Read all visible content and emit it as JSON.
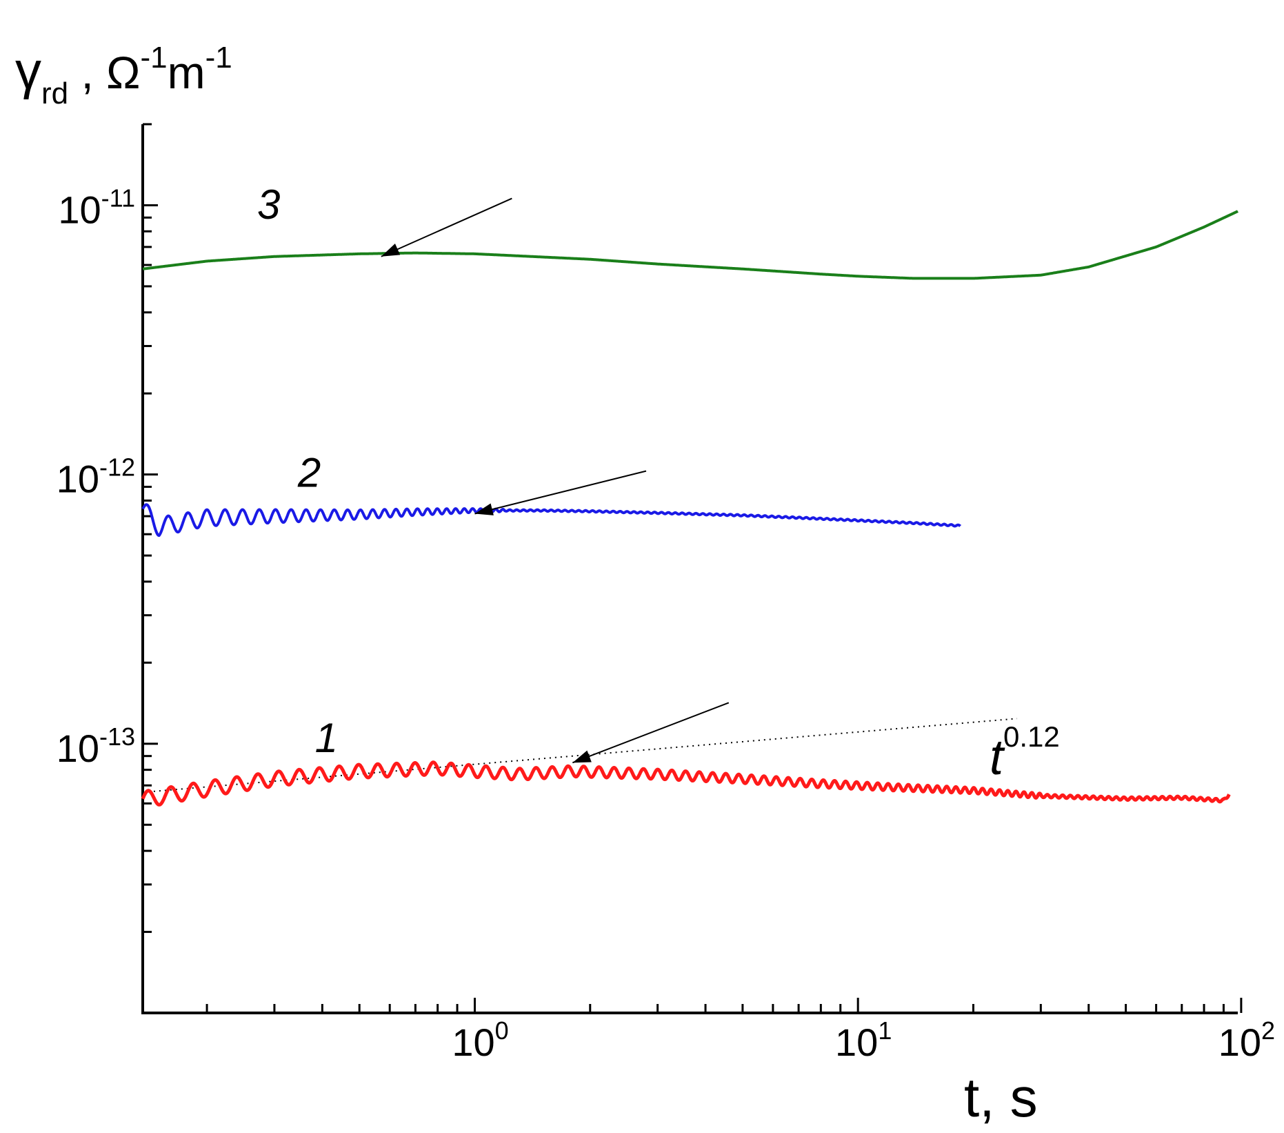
{
  "chart_data": {
    "type": "line",
    "title": "",
    "xlabel": "t, s",
    "ylabel": "γrd , Ω-1m-1",
    "ylabel_parts": {
      "symbol": "γ",
      "sub": "rd",
      "sep": " , ",
      "unit1": "Ω",
      "sup1": "-1",
      "unit2": "m",
      "sup2": "-1"
    },
    "xlabel_text": "t, s",
    "x_scale": "log",
    "y_scale": "log",
    "xlim": [
      0.136,
      98
    ],
    "ylim": [
      1e-14,
      2e-11
    ],
    "x_ticks": [
      {
        "value": 1,
        "base": "10",
        "exp": "0"
      },
      {
        "value": 10,
        "base": "10",
        "exp": "1"
      },
      {
        "value": 100,
        "base": "10",
        "exp": "2"
      }
    ],
    "y_ticks": [
      {
        "value": 1e-11,
        "base": "10",
        "exp": "-11"
      },
      {
        "value": 1e-12,
        "base": "10",
        "exp": "-12"
      },
      {
        "value": 1e-13,
        "base": "10",
        "exp": "-13"
      }
    ],
    "series": [
      {
        "name": "3",
        "color": "#1a7f1a",
        "x": [
          0.136,
          0.2,
          0.3,
          0.5,
          0.7,
          1.0,
          2,
          3,
          5,
          8,
          10,
          14,
          20,
          30,
          40,
          60,
          80,
          98
        ],
        "y": [
          5.8e-12,
          6.2e-12,
          6.45e-12,
          6.6e-12,
          6.65e-12,
          6.6e-12,
          6.3e-12,
          6.05e-12,
          5.8e-12,
          5.55e-12,
          5.45e-12,
          5.35e-12,
          5.35e-12,
          5.5e-12,
          5.9e-12,
          7e-12,
          8.3e-12,
          9.5e-12
        ],
        "oscillation": null
      },
      {
        "name": "2",
        "color": "#1a1ae6",
        "x": [
          0.136,
          0.15,
          0.2,
          0.3,
          0.5,
          0.7,
          1.0,
          1.5,
          2,
          3,
          5,
          8,
          10,
          14,
          18.5
        ],
        "y": [
          7.4e-13,
          6.4e-13,
          6.9e-13,
          7e-13,
          7.1e-13,
          7.25e-13,
          7.35e-13,
          7.35e-13,
          7.3e-13,
          7.2e-13,
          7.05e-13,
          6.85e-13,
          6.75e-13,
          6.6e-13,
          6.45e-13
        ],
        "oscillation": {
          "amp_start": 0.12,
          "amp_end": 0.015,
          "x_end": 1.2,
          "period_start": 0.055,
          "period_end": 0.018
        }
      },
      {
        "name": "1",
        "color": "#ff1a1a",
        "x": [
          0.136,
          0.2,
          0.3,
          0.5,
          0.8,
          1.0,
          1.3,
          1.8,
          3,
          5,
          8,
          12,
          20,
          30,
          50,
          70,
          90,
          93
        ],
        "y": [
          6.2e-14,
          6.8e-14,
          7.4e-14,
          7.9e-14,
          8.1e-14,
          7.9e-14,
          7.7e-14,
          7.9e-14,
          7.7e-14,
          7.4e-14,
          7.1e-14,
          6.9e-14,
          6.7e-14,
          6.4e-14,
          6.25e-14,
          6.3e-14,
          6.15e-14,
          6.5e-14
        ],
        "oscillation": {
          "amp_start": 0.1,
          "amp_end": 0.03,
          "x_end": 30,
          "period_start": 0.06,
          "period_end": 0.02
        }
      }
    ],
    "fit_line": {
      "label_base": "t",
      "label_exp": "0.12",
      "x": [
        0.136,
        26
      ],
      "y": [
        6.6e-14,
        1.24e-13
      ]
    },
    "arrows": [
      {
        "curve": "3",
        "from": [
          1.25,
          1.06e-11
        ],
        "to": [
          0.57,
          6.45e-12
        ]
      },
      {
        "curve": "2",
        "from": [
          2.8,
          1.03e-12
        ],
        "to": [
          1.0,
          7.15e-13
        ]
      },
      {
        "curve": "1",
        "from": [
          4.6,
          1.42e-13
        ],
        "to": [
          1.8,
          8.5e-14
        ]
      }
    ],
    "curve_labels": [
      {
        "text": "3",
        "x": 0.29,
        "y": 8.9e-12
      },
      {
        "text": "2",
        "x": 0.37,
        "y": 9e-13
      },
      {
        "text": "1",
        "x": 0.41,
        "y": 9.3e-14
      }
    ],
    "legend": "none",
    "grid": false
  }
}
